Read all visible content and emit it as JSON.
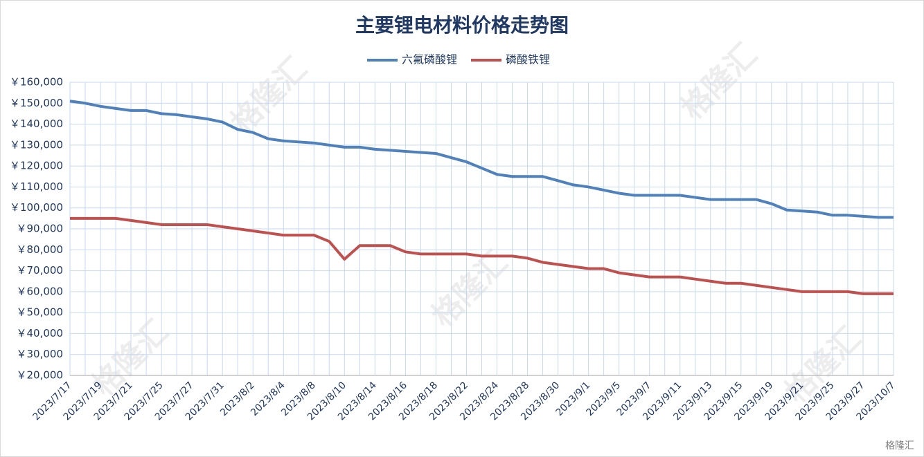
{
  "chart_data": {
    "type": "line",
    "title": "主要锂电材料价格走势图",
    "categories": [
      "2023/7/17",
      null,
      "2023/7/19",
      null,
      "2023/7/21",
      null,
      "2023/7/25",
      null,
      "2023/7/27",
      null,
      "2023/7/31",
      null,
      "2023/8/2",
      null,
      "2023/8/4",
      null,
      "2023/8/8",
      null,
      "2023/8/10",
      null,
      "2023/8/14",
      null,
      "2023/8/16",
      null,
      "2023/8/18",
      null,
      "2023/8/22",
      null,
      "2023/8/24",
      null,
      "2023/8/28",
      null,
      "2023/8/30",
      null,
      "2023/9/1",
      null,
      "2023/9/5",
      null,
      "2023/9/7",
      null,
      "2023/9/11",
      null,
      "2023/9/13",
      null,
      "2023/9/15",
      null,
      "2023/9/19",
      null,
      "2023/9/21",
      null,
      "2023/9/25",
      null,
      "2023/9/27",
      null,
      "2023/10/7"
    ],
    "series": [
      {
        "name": "六氟磷酸锂",
        "color": "#4f81bd",
        "values": [
          151000,
          150000,
          148500,
          147500,
          146500,
          146500,
          145000,
          144500,
          143500,
          142500,
          141000,
          137500,
          136000,
          133000,
          132000,
          131500,
          131000,
          130000,
          129000,
          129000,
          128000,
          127500,
          127000,
          126500,
          126000,
          124000,
          122000,
          119000,
          116000,
          115000,
          115000,
          115000,
          113000,
          111000,
          110000,
          108500,
          107000,
          106000,
          106000,
          106000,
          106000,
          105000,
          104000,
          104000,
          104000,
          104000,
          102000,
          99000,
          98500,
          98000,
          96500,
          96500,
          96000,
          95500,
          95500
        ]
      },
      {
        "name": "磷酸铁锂",
        "color": "#c0504d",
        "values": [
          95000,
          95000,
          95000,
          95000,
          94000,
          93000,
          92000,
          92000,
          92000,
          92000,
          91000,
          90000,
          89000,
          88000,
          87000,
          87000,
          87000,
          84000,
          75500,
          82000,
          82000,
          82000,
          79000,
          78000,
          78000,
          78000,
          78000,
          77000,
          77000,
          77000,
          76000,
          74000,
          73000,
          72000,
          71000,
          71000,
          69000,
          68000,
          67000,
          67000,
          67000,
          66000,
          65000,
          64000,
          64000,
          63000,
          62000,
          61000,
          60000,
          60000,
          60000,
          60000,
          59000,
          59000,
          59000
        ]
      }
    ],
    "ylim": [
      20000,
      160000
    ],
    "yticks": [
      {
        "value": 20000,
        "label": "￥20,000"
      },
      {
        "value": 30000,
        "label": "￥30,000"
      },
      {
        "value": 40000,
        "label": "￥40,000"
      },
      {
        "value": 50000,
        "label": "￥50,000"
      },
      {
        "value": 60000,
        "label": "￥60,000"
      },
      {
        "value": 70000,
        "label": "￥70,000"
      },
      {
        "value": 80000,
        "label": "￥80,000"
      },
      {
        "value": 90000,
        "label": "￥90,000"
      },
      {
        "value": 100000,
        "label": "￥100,000"
      },
      {
        "value": 110000,
        "label": "￥110,000"
      },
      {
        "value": 120000,
        "label": "￥120,000"
      },
      {
        "value": 130000,
        "label": "￥130,000"
      },
      {
        "value": 140000,
        "label": "￥140,000"
      },
      {
        "value": 150000,
        "label": "￥150,000"
      },
      {
        "value": 160000,
        "label": "￥160,000"
      }
    ],
    "grid": true,
    "legend": "top",
    "watermark": "格隆汇"
  }
}
